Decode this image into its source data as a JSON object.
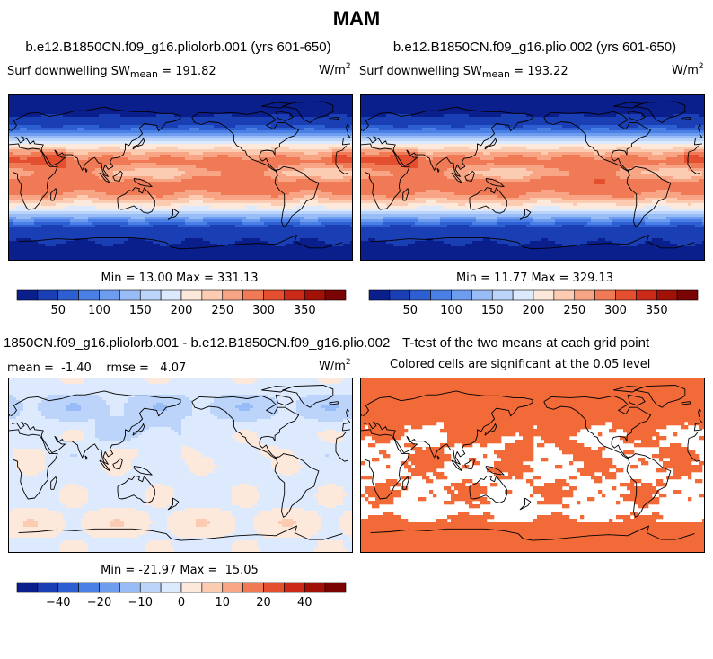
{
  "figure_title": "MAM",
  "panels": [
    {
      "title": "b.e12.B1850CN.f09_g16.pliolorb.001 (yrs 601-650)",
      "left_label_prefix": "Surf downwelling SW",
      "left_label_sub": "mean",
      "left_label_value": "= 191.82",
      "units_base": "W/m",
      "units_exp": "2",
      "minmax": "Min =  13.00 Max = 331.13"
    },
    {
      "title": "b.e12.B1850CN.f09_g16.plio.002 (yrs 601-650)",
      "left_label_prefix": "Surf downwelling SW",
      "left_label_sub": "mean",
      "left_label_value": "= 193.22",
      "units_base": "W/m",
      "units_exp": "2",
      "minmax": "Min =  11.77 Max = 329.13"
    },
    {
      "title": "1850CN.f09_g16.pliolorb.001 - b.e12.B1850CN.f09_g16.plio.002",
      "left_label": "mean =  -1.40    rmse =   4.07",
      "units_base": "W/m",
      "units_exp": "2",
      "minmax": "Min = -21.97 Max =  15.05"
    },
    {
      "title": "T-test of the two means at each grid point",
      "subtitle": "Colored cells are significant at the 0.05 level"
    }
  ],
  "chart_data": [
    {
      "type": "heatmap",
      "title": "b.e12.B1850CN.f09_g16.pliolorb.001 (yrs 601-650)",
      "variable": "Surf downwelling SW",
      "units": "W/m2",
      "mean": 191.82,
      "min": 13.0,
      "max": 331.13,
      "colorbar_ticks": [
        "50",
        "100",
        "150",
        "200",
        "250",
        "300",
        "350"
      ],
      "colorbar_levels": [
        25,
        50,
        75,
        100,
        125,
        150,
        175,
        200,
        225,
        250,
        275,
        300,
        325,
        350,
        375
      ]
    },
    {
      "type": "heatmap",
      "title": "b.e12.B1850CN.f09_g16.plio.002 (yrs 601-650)",
      "variable": "Surf downwelling SW",
      "units": "W/m2",
      "mean": 193.22,
      "min": 11.77,
      "max": 329.13,
      "colorbar_ticks": [
        "50",
        "100",
        "150",
        "200",
        "250",
        "300",
        "350"
      ],
      "colorbar_levels": [
        25,
        50,
        75,
        100,
        125,
        150,
        175,
        200,
        225,
        250,
        275,
        300,
        325,
        350,
        375
      ]
    },
    {
      "type": "heatmap",
      "title": "1850CN.f09_g16.pliolorb.001 - b.e12.B1850CN.f09_g16.plio.002",
      "units": "W/m2",
      "mean": -1.4,
      "rmse": 4.07,
      "min": -21.97,
      "max": 15.05,
      "colorbar_ticks": [
        "−40",
        "−20",
        "−10",
        "0",
        "10",
        "20",
        "40"
      ],
      "colorbar_levels": [
        -50,
        -40,
        -30,
        -20,
        -15,
        -10,
        -5,
        0,
        5,
        10,
        15,
        20,
        30,
        40,
        50
      ]
    },
    {
      "type": "heatmap",
      "title": "T-test of the two means at each grid point",
      "subtitle": "Colored cells are significant at the 0.05 level",
      "significance_level": 0.05
    }
  ],
  "colors": {
    "palette": [
      "#0a1e8c",
      "#1a3fb4",
      "#2d5fd2",
      "#4a7fe6",
      "#6e9df0",
      "#97bcf6",
      "#bcd4fa",
      "#dde9fc",
      "#fde8dc",
      "#fbcbb2",
      "#f7a585",
      "#f07a55",
      "#e4502f",
      "#cc2a18",
      "#a01208",
      "#7a0404"
    ],
    "significant": "#f26a37",
    "coast": "#000000"
  }
}
